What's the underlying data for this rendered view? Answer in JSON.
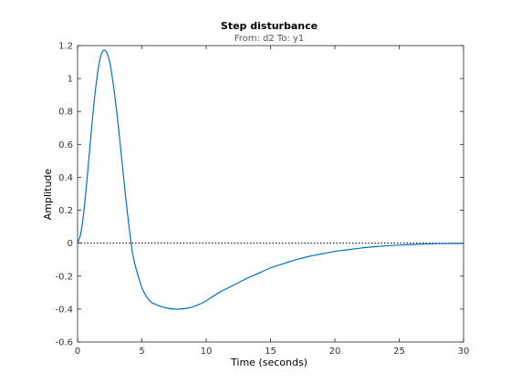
{
  "chart_data": {
    "type": "line",
    "title": "Step disturbance",
    "subtitle": "From: d2  To: y1",
    "xlabel": "Time (seconds)",
    "ylabel": "Amplitude",
    "xlim": [
      0,
      30
    ],
    "ylim": [
      -0.6,
      1.2
    ],
    "x_ticks": [
      0,
      5,
      10,
      15,
      20,
      25,
      30
    ],
    "y_ticks": [
      -0.6,
      -0.4,
      -0.2,
      0,
      0.2,
      0.4,
      0.6,
      0.8,
      1,
      1.2
    ],
    "x_tick_labels": [
      "0",
      "5",
      "10",
      "15",
      "20",
      "25",
      "30"
    ],
    "y_tick_labels": [
      "-0.6",
      "-0.4",
      "-0.2",
      "0",
      "0.2",
      "0.4",
      "0.6",
      "0.8",
      "1",
      "1.2"
    ],
    "grid": false,
    "reference_line": {
      "y": 0,
      "style": "dotted",
      "color": "#000000"
    },
    "series": [
      {
        "color": "#0072bd",
        "x": [
          0,
          0.25,
          0.5,
          0.75,
          1,
          1.25,
          1.5,
          1.75,
          2,
          2.25,
          2.5,
          2.75,
          3,
          3.25,
          3.5,
          3.75,
          4,
          4.25,
          4.5,
          4.75,
          5,
          5.25,
          5.5,
          5.75,
          6,
          6.5,
          7,
          7.5,
          8,
          8.5,
          9,
          9.5,
          10,
          11,
          12,
          13,
          14,
          15,
          16,
          17,
          18,
          19,
          20,
          21,
          22,
          23,
          24,
          25,
          26,
          27,
          28,
          29,
          30
        ],
        "y": [
          0,
          0.06,
          0.2,
          0.4,
          0.62,
          0.83,
          1.0,
          1.12,
          1.17,
          1.16,
          1.1,
          0.98,
          0.83,
          0.65,
          0.46,
          0.27,
          0.1,
          -0.05,
          -0.14,
          -0.21,
          -0.27,
          -0.31,
          -0.34,
          -0.36,
          -0.37,
          -0.385,
          -0.395,
          -0.4,
          -0.4,
          -0.395,
          -0.385,
          -0.37,
          -0.35,
          -0.3,
          -0.26,
          -0.22,
          -0.185,
          -0.15,
          -0.125,
          -0.1,
          -0.08,
          -0.065,
          -0.05,
          -0.04,
          -0.03,
          -0.022,
          -0.016,
          -0.012,
          -0.008,
          -0.005,
          -0.003,
          -0.002,
          -0.001
        ]
      }
    ]
  }
}
